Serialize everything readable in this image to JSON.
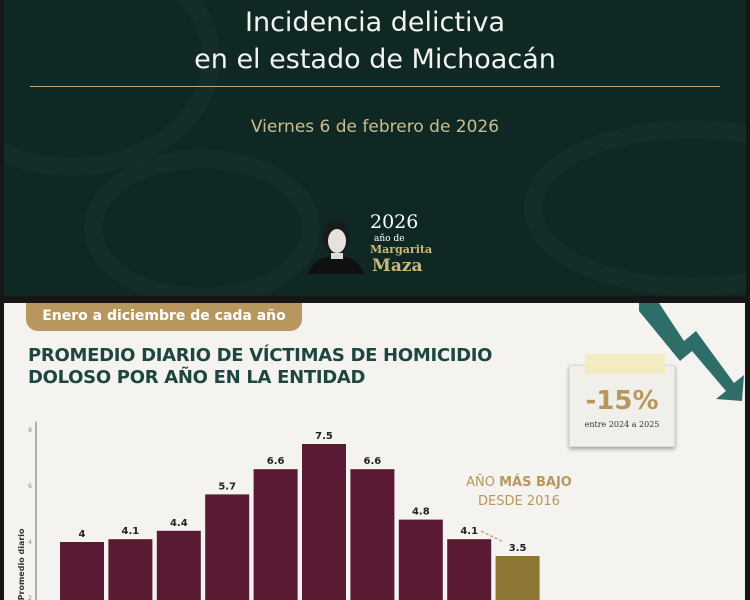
{
  "slide": {
    "title_line1": "Incidencia delictiva",
    "title_line2": "en el estado de Michoacán",
    "date": "Viernes 6 de febrero de 2026",
    "logo": {
      "year": "2026",
      "subtitle": "año de",
      "name1": "Margarita",
      "name2": "Maza"
    }
  },
  "infographic": {
    "period_label": "Enero a diciembre de cada año",
    "title_line1": "PROMEDIO DIARIO DE VÍCTIMAS DE HOMICIDIO",
    "title_line2": "DOLOSO POR AÑO EN LA ENTIDAD",
    "change": {
      "value": "-15%",
      "caption": "entre 2024 a 2025"
    },
    "lowest": {
      "prefix": "AÑO ",
      "bold": "MÁS BAJO",
      "line2": "DESDE 2016"
    }
  },
  "colors": {
    "bar": "#5a1a33",
    "highlight": "#8e7634",
    "title": "#1e4640",
    "gold": "#b8975f",
    "slide_bg": "#0f2823"
  },
  "chart_data": {
    "type": "bar",
    "ylabel": "Promedio diario",
    "yticks": [
      2,
      4,
      6,
      8
    ],
    "ylim": [
      0,
      8.3
    ],
    "values": [
      4,
      4.1,
      4.4,
      5.7,
      6.6,
      7.5,
      6.6,
      4.8,
      4.1,
      3.5
    ],
    "value_labels": [
      "4",
      "4.1",
      "4.4",
      "5.7",
      "6.6",
      "7.5",
      "6.6",
      "4.8",
      "4.1",
      "3.5"
    ],
    "highlight_index": 9,
    "grid": false
  }
}
